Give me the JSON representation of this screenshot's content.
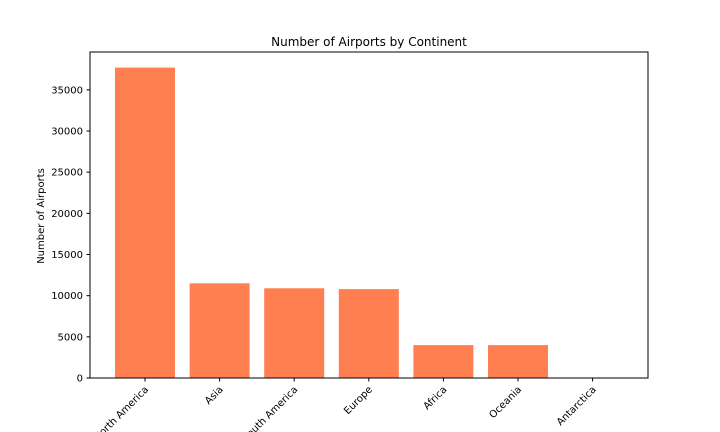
{
  "chart_data": {
    "type": "bar",
    "title": "Number of Airports by Continent",
    "xlabel": "",
    "ylabel": "Number of Airports",
    "categories": [
      "North America",
      "Asia",
      "South America",
      "Europe",
      "Africa",
      "Oceania",
      "Antarctica"
    ],
    "values": [
      37700,
      11500,
      10900,
      10800,
      4000,
      4000,
      30
    ],
    "ylim": [
      0,
      39600
    ],
    "yticks": [
      0,
      5000,
      10000,
      15000,
      20000,
      25000,
      30000,
      35000
    ],
    "bar_color": "#ff7f50",
    "grid": false,
    "legend": "none"
  }
}
